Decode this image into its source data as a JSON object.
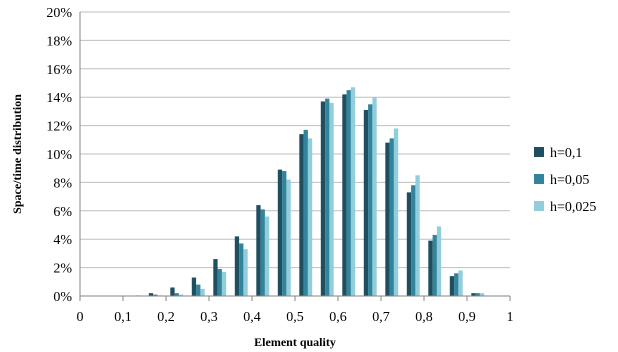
{
  "chart_data": {
    "type": "bar",
    "xlabel": "Element quality",
    "ylabel": "Space/time distribution",
    "x_ticks": [
      "0",
      "0,1",
      "0,2",
      "0,3",
      "0,4",
      "0,5",
      "0,6",
      "0,7",
      "0,8",
      "0,9",
      "1"
    ],
    "y_ticks": [
      "0%",
      "2%",
      "4%",
      "6%",
      "8%",
      "10%",
      "12%",
      "14%",
      "16%",
      "18%",
      "20%"
    ],
    "xlim": [
      0,
      1
    ],
    "ylim": [
      0,
      20
    ],
    "y_unit": "%",
    "grid": "horizontal",
    "legend_position": "right",
    "bin_centers": [
      0.025,
      0.075,
      0.125,
      0.175,
      0.225,
      0.275,
      0.325,
      0.375,
      0.425,
      0.475,
      0.525,
      0.575,
      0.625,
      0.675,
      0.725,
      0.775,
      0.825,
      0.875,
      0.925,
      0.975
    ],
    "series": [
      {
        "name": "h=0,1",
        "color": "#1f4e5f",
        "values": [
          0,
          0,
          0,
          0.2,
          0.6,
          1.3,
          2.6,
          4.2,
          6.4,
          8.9,
          11.4,
          13.7,
          14.2,
          13.1,
          10.8,
          7.3,
          3.9,
          1.4,
          0.2,
          0
        ]
      },
      {
        "name": "h=0,05",
        "color": "#31849b",
        "values": [
          0,
          0,
          0,
          0.1,
          0.2,
          0.8,
          1.9,
          3.7,
          6.1,
          8.8,
          11.7,
          13.9,
          14.5,
          13.5,
          11.1,
          7.8,
          4.3,
          1.6,
          0.2,
          0
        ]
      },
      {
        "name": "h=0,025",
        "color": "#92cddc",
        "values": [
          0,
          0,
          0.05,
          0.05,
          0.1,
          0.5,
          1.7,
          3.3,
          5.6,
          8.2,
          11.1,
          13.6,
          14.7,
          14.0,
          11.8,
          8.5,
          4.9,
          1.8,
          0.2,
          0
        ]
      }
    ]
  }
}
